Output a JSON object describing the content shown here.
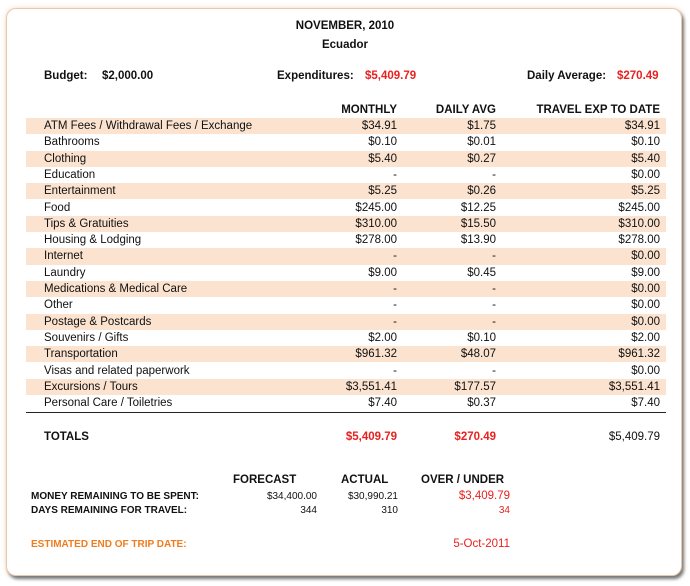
{
  "header": {
    "title": "NOVEMBER, 2010",
    "subtitle": "Ecuador"
  },
  "summary": {
    "budget_label": "Budget:",
    "budget": "$2,000.00",
    "expenditures_label": "Expenditures:",
    "expenditures": "$5,409.79",
    "daily_average_label": "Daily Average:",
    "daily_average": "$270.49"
  },
  "columns": [
    "MONTHLY",
    "DAILY AVG",
    "TRAVEL EXP TO DATE"
  ],
  "rows": [
    {
      "category": "ATM Fees / Withdrawal Fees / Exchange",
      "monthly": "$34.91",
      "daily": "$1.75",
      "to_date": "$34.91"
    },
    {
      "category": "Bathrooms",
      "monthly": "$0.10",
      "daily": "$0.01",
      "to_date": "$0.10"
    },
    {
      "category": "Clothing",
      "monthly": "$5.40",
      "daily": "$0.27",
      "to_date": "$5.40"
    },
    {
      "category": "Education",
      "monthly": "-",
      "daily": "-",
      "to_date": "$0.00"
    },
    {
      "category": "Entertainment",
      "monthly": "$5.25",
      "daily": "$0.26",
      "to_date": "$5.25"
    },
    {
      "category": "Food",
      "monthly": "$245.00",
      "daily": "$12.25",
      "to_date": "$245.00"
    },
    {
      "category": "Tips & Gratuities",
      "monthly": "$310.00",
      "daily": "$15.50",
      "to_date": "$310.00"
    },
    {
      "category": "Housing & Lodging",
      "monthly": "$278.00",
      "daily": "$13.90",
      "to_date": "$278.00"
    },
    {
      "category": "Internet",
      "monthly": "-",
      "daily": "-",
      "to_date": "$0.00"
    },
    {
      "category": "Laundry",
      "monthly": "$9.00",
      "daily": "$0.45",
      "to_date": "$9.00"
    },
    {
      "category": "Medications & Medical Care",
      "monthly": "-",
      "daily": "-",
      "to_date": "$0.00"
    },
    {
      "category": "Other",
      "monthly": "-",
      "daily": "-",
      "to_date": "$0.00"
    },
    {
      "category": "Postage & Postcards",
      "monthly": "-",
      "daily": "-",
      "to_date": "$0.00"
    },
    {
      "category": "Souvenirs / Gifts",
      "monthly": "$2.00",
      "daily": "$0.10",
      "to_date": "$2.00"
    },
    {
      "category": "Transportation",
      "monthly": "$961.32",
      "daily": "$48.07",
      "to_date": "$961.32"
    },
    {
      "category": "Visas and related paperwork",
      "monthly": "-",
      "daily": "-",
      "to_date": "$0.00"
    },
    {
      "category": "Excursions / Tours",
      "monthly": "$3,551.41",
      "daily": "$177.57",
      "to_date": "$3,551.41"
    },
    {
      "category": "Personal Care / Toiletries",
      "monthly": "$7.40",
      "daily": "$0.37",
      "to_date": "$7.40"
    }
  ],
  "totals": {
    "label": "TOTALS",
    "monthly": "$5,409.79",
    "daily": "$270.49",
    "to_date": "$5,409.79"
  },
  "forecast": {
    "headers": [
      "FORECAST",
      "ACTUAL",
      "OVER / UNDER"
    ],
    "money": {
      "label": "MONEY REMAINING TO BE SPENT:",
      "forecast": "$34,400.00",
      "actual": "$30,990.21",
      "over_under": "$3,409.79"
    },
    "days": {
      "label": "DAYS REMAINING FOR TRAVEL:",
      "forecast": "344",
      "actual": "310",
      "over_under": "34"
    },
    "end_date": {
      "label": "ESTIMATED END OF TRIP DATE:",
      "value": "5-Oct-2011"
    }
  },
  "colors": {
    "accent_red": "#e8211f",
    "orange": "#f07c1e",
    "row_shade": "#fbe3d0"
  }
}
